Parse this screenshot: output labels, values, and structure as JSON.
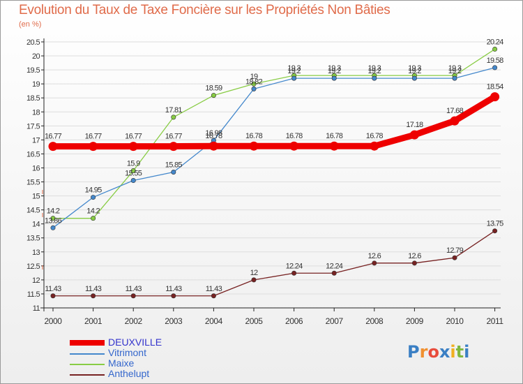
{
  "page": {
    "title": "Evolution du Taux de Taxe Foncière sur les Propriétés Non Bâties",
    "unit": "(en %)"
  },
  "logo": {
    "text": "Proxiti",
    "letter_colors": [
      "#3a7fc4",
      "#f09030",
      "#e84c3c",
      "#3a7fc4",
      "#f0b020",
      "#7fb840",
      "#3a7fc4"
    ]
  },
  "colors": {
    "title": "#e06b4a",
    "axis": "#222222",
    "gridline": "#dddddd"
  },
  "chart_data": {
    "type": "line",
    "title": "Evolution du Taux de Taxe Foncière sur les Propriétés Non Bâties",
    "ylabel": "(en %)",
    "x": [
      "2000",
      "2001",
      "2002",
      "2003",
      "2004",
      "2005",
      "2006",
      "2007",
      "2008",
      "2009",
      "2010",
      "2011"
    ],
    "ylim": [
      11,
      20.5
    ],
    "yticks": [
      "11",
      "11.5",
      "12",
      "12.5",
      "13",
      "13.5",
      "14",
      "14.5",
      "15",
      "15.5",
      "16",
      "16.5",
      "17",
      "17.5",
      "18",
      "18.5",
      "19",
      "19.5",
      "20",
      "20.5"
    ],
    "legend_position": "bottom-left",
    "series": [
      {
        "name": "Maixe",
        "color": "#88cc44",
        "values": [
          14.2,
          14.2,
          15.9,
          17.81,
          18.59,
          19,
          19.3,
          19.3,
          19.3,
          19.3,
          19.3,
          20.24
        ],
        "labels": [
          "14.2",
          "14.2",
          "15.9",
          "17.81",
          "18.59",
          "19",
          "19.3",
          "19.3",
          "19.3",
          "19.3",
          "19.3",
          "20.24"
        ]
      },
      {
        "name": "Vitrimont",
        "color": "#4488cc",
        "values": [
          13.86,
          14.95,
          15.55,
          15.85,
          16.98,
          18.82,
          19.2,
          19.2,
          19.2,
          19.2,
          19.2,
          19.58
        ],
        "labels": [
          "13.86",
          "14.95",
          "15.55",
          "15.85",
          "16.98",
          "18.82",
          "19.2",
          "19.2",
          "19.2",
          "19.2",
          "19.2",
          "19.58"
        ]
      },
      {
        "name": "Anthelupt",
        "color": "#772222",
        "values": [
          11.43,
          11.43,
          11.43,
          11.43,
          11.43,
          12,
          12.24,
          12.24,
          12.6,
          12.6,
          12.79,
          13.75
        ],
        "labels": [
          "11.43",
          "11.43",
          "11.43",
          "11.43",
          "11.43",
          "12",
          "12.24",
          "12.24",
          "12.6",
          "12.6",
          "12.79",
          "13.75"
        ]
      },
      {
        "name": "DEUXVILLE",
        "color": "#ee0000",
        "values": [
          16.77,
          16.77,
          16.77,
          16.77,
          16.78,
          16.78,
          16.78,
          16.78,
          16.78,
          17.18,
          17.68,
          18.54
        ],
        "labels": [
          "16.77",
          "16.77",
          "16.77",
          "16.77",
          "16.78",
          "16.78",
          "16.78",
          "16.78",
          "16.78",
          "17.18",
          "17.68",
          "18.54"
        ]
      }
    ],
    "legend": [
      {
        "name": "DEUXVILLE",
        "color": "#ee0000",
        "text_color": "#3333cc"
      },
      {
        "name": "Vitrimont",
        "color": "#4488cc",
        "text_color": "#3366cc"
      },
      {
        "name": "Maixe",
        "color": "#88cc44",
        "text_color": "#3366cc"
      },
      {
        "name": "Anthelupt",
        "color": "#772222",
        "text_color": "#3366cc"
      }
    ]
  }
}
